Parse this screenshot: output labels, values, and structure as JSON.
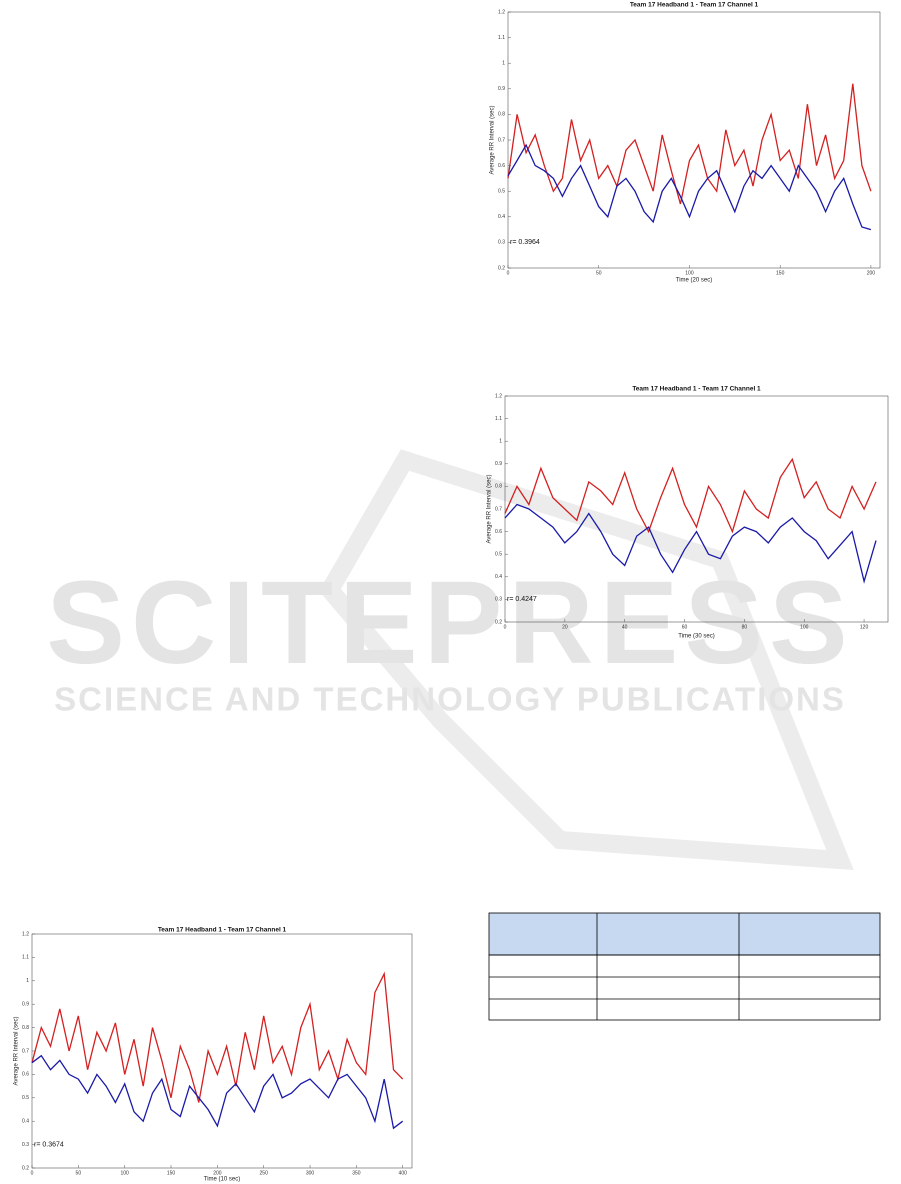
{
  "watermark": {
    "title": "SCITEPRESS",
    "subtitle": "SCIENCE AND TECHNOLOGY PUBLICATIONS"
  },
  "chart_data": [
    {
      "type": "line",
      "title": "Team 17 Headband 1 - Team 17 Channel 1",
      "x_label": "Time (20 sec)",
      "y_label": "Average RR Interval (sec)",
      "annotation": "r= 0.3964",
      "x": [
        0,
        5,
        10,
        15,
        20,
        25,
        30,
        35,
        40,
        45,
        50,
        55,
        60,
        65,
        70,
        75,
        80,
        85,
        90,
        95,
        100,
        105,
        110,
        115,
        120,
        125,
        130,
        135,
        140,
        145,
        150,
        155,
        160,
        165,
        170,
        175,
        180,
        185,
        190,
        195,
        200
      ],
      "series": [
        {
          "color": "#d42020",
          "values": [
            0.55,
            0.8,
            0.65,
            0.72,
            0.6,
            0.5,
            0.55,
            0.78,
            0.62,
            0.7,
            0.55,
            0.6,
            0.52,
            0.66,
            0.7,
            0.6,
            0.5,
            0.72,
            0.58,
            0.45,
            0.62,
            0.68,
            0.55,
            0.5,
            0.74,
            0.6,
            0.66,
            0.52,
            0.7,
            0.8,
            0.62,
            0.66,
            0.55,
            0.84,
            0.6,
            0.72,
            0.55,
            0.62,
            0.92,
            0.6,
            0.5
          ]
        },
        {
          "color": "#1a1aa8",
          "values": [
            0.56,
            0.62,
            0.68,
            0.6,
            0.58,
            0.55,
            0.48,
            0.55,
            0.6,
            0.52,
            0.44,
            0.4,
            0.52,
            0.55,
            0.5,
            0.42,
            0.38,
            0.5,
            0.55,
            0.48,
            0.4,
            0.5,
            0.55,
            0.58,
            0.5,
            0.42,
            0.52,
            0.58,
            0.55,
            0.6,
            0.55,
            0.5,
            0.6,
            0.55,
            0.5,
            0.42,
            0.5,
            0.55,
            0.45,
            0.36,
            0.35
          ]
        }
      ],
      "xlim": [
        0,
        205
      ],
      "xticks": [
        0,
        50,
        100,
        150,
        200
      ],
      "ylim": [
        0.2,
        1.2
      ],
      "yticks": [
        0.2,
        0.3,
        0.4,
        0.5,
        0.6,
        0.7,
        0.8,
        0.9,
        1,
        1.1,
        1.2
      ]
    },
    {
      "type": "line",
      "title": "Team 17 Headband 1 - Team 17 Channel 1",
      "x_label": "Time (30 sec)",
      "y_label": "Average RR Interval (sec)",
      "annotation": "r= 0.4247",
      "x": [
        0,
        4,
        8,
        12,
        16,
        20,
        24,
        28,
        32,
        36,
        40,
        44,
        48,
        52,
        56,
        60,
        64,
        68,
        72,
        76,
        80,
        84,
        88,
        92,
        96,
        100,
        104,
        108,
        112,
        116,
        120,
        124
      ],
      "series": [
        {
          "color": "#d42020",
          "values": [
            0.68,
            0.8,
            0.72,
            0.88,
            0.75,
            0.7,
            0.65,
            0.82,
            0.78,
            0.72,
            0.86,
            0.7,
            0.6,
            0.75,
            0.88,
            0.72,
            0.62,
            0.8,
            0.72,
            0.6,
            0.78,
            0.7,
            0.66,
            0.84,
            0.92,
            0.75,
            0.82,
            0.7,
            0.66,
            0.8,
            0.7,
            0.82
          ]
        },
        {
          "color": "#1a1aa8",
          "values": [
            0.66,
            0.72,
            0.7,
            0.66,
            0.62,
            0.55,
            0.6,
            0.68,
            0.6,
            0.5,
            0.45,
            0.58,
            0.62,
            0.5,
            0.42,
            0.52,
            0.6,
            0.5,
            0.48,
            0.58,
            0.62,
            0.6,
            0.55,
            0.62,
            0.66,
            0.6,
            0.56,
            0.48,
            0.54,
            0.6,
            0.38,
            0.56
          ]
        }
      ],
      "xlim": [
        0,
        128
      ],
      "xticks": [
        0,
        20,
        40,
        60,
        80,
        100,
        120
      ],
      "ylim": [
        0.2,
        1.2
      ],
      "yticks": [
        0.2,
        0.3,
        0.4,
        0.5,
        0.6,
        0.7,
        0.8,
        0.9,
        1,
        1.1,
        1.2
      ]
    },
    {
      "type": "line",
      "title": "Team 17 Headband 1 - Team 17 Channel 1",
      "x_label": "Time (10 sec)",
      "y_label": "Average RR Interval (sec)",
      "annotation": "r= 0.3674",
      "x": [
        0,
        10,
        20,
        30,
        40,
        50,
        60,
        70,
        80,
        90,
        100,
        110,
        120,
        130,
        140,
        150,
        160,
        170,
        180,
        190,
        200,
        210,
        220,
        230,
        240,
        250,
        260,
        270,
        280,
        290,
        300,
        310,
        320,
        330,
        340,
        350,
        360,
        370,
        380,
        390,
        400
      ],
      "series": [
        {
          "color": "#d42020",
          "values": [
            0.65,
            0.8,
            0.72,
            0.88,
            0.7,
            0.85,
            0.62,
            0.78,
            0.7,
            0.82,
            0.6,
            0.75,
            0.55,
            0.8,
            0.66,
            0.5,
            0.72,
            0.62,
            0.48,
            0.7,
            0.6,
            0.72,
            0.55,
            0.78,
            0.62,
            0.85,
            0.65,
            0.72,
            0.6,
            0.8,
            0.9,
            0.62,
            0.7,
            0.58,
            0.75,
            0.65,
            0.6,
            0.95,
            1.03,
            0.62,
            0.58
          ]
        },
        {
          "color": "#1a1aa8",
          "values": [
            0.65,
            0.68,
            0.62,
            0.66,
            0.6,
            0.58,
            0.52,
            0.6,
            0.55,
            0.48,
            0.56,
            0.44,
            0.4,
            0.52,
            0.58,
            0.45,
            0.42,
            0.55,
            0.5,
            0.45,
            0.38,
            0.52,
            0.56,
            0.5,
            0.44,
            0.55,
            0.6,
            0.5,
            0.52,
            0.56,
            0.58,
            0.54,
            0.5,
            0.58,
            0.6,
            0.55,
            0.5,
            0.4,
            0.58,
            0.37,
            0.4
          ]
        }
      ],
      "xlim": [
        0,
        410
      ],
      "xticks": [
        0,
        50,
        100,
        150,
        200,
        250,
        300,
        350,
        400
      ],
      "ylim": [
        0.2,
        1.2
      ],
      "yticks": [
        0.2,
        0.3,
        0.4,
        0.5,
        0.6,
        0.7,
        0.8,
        0.9,
        1,
        1.1,
        1.2
      ]
    }
  ]
}
